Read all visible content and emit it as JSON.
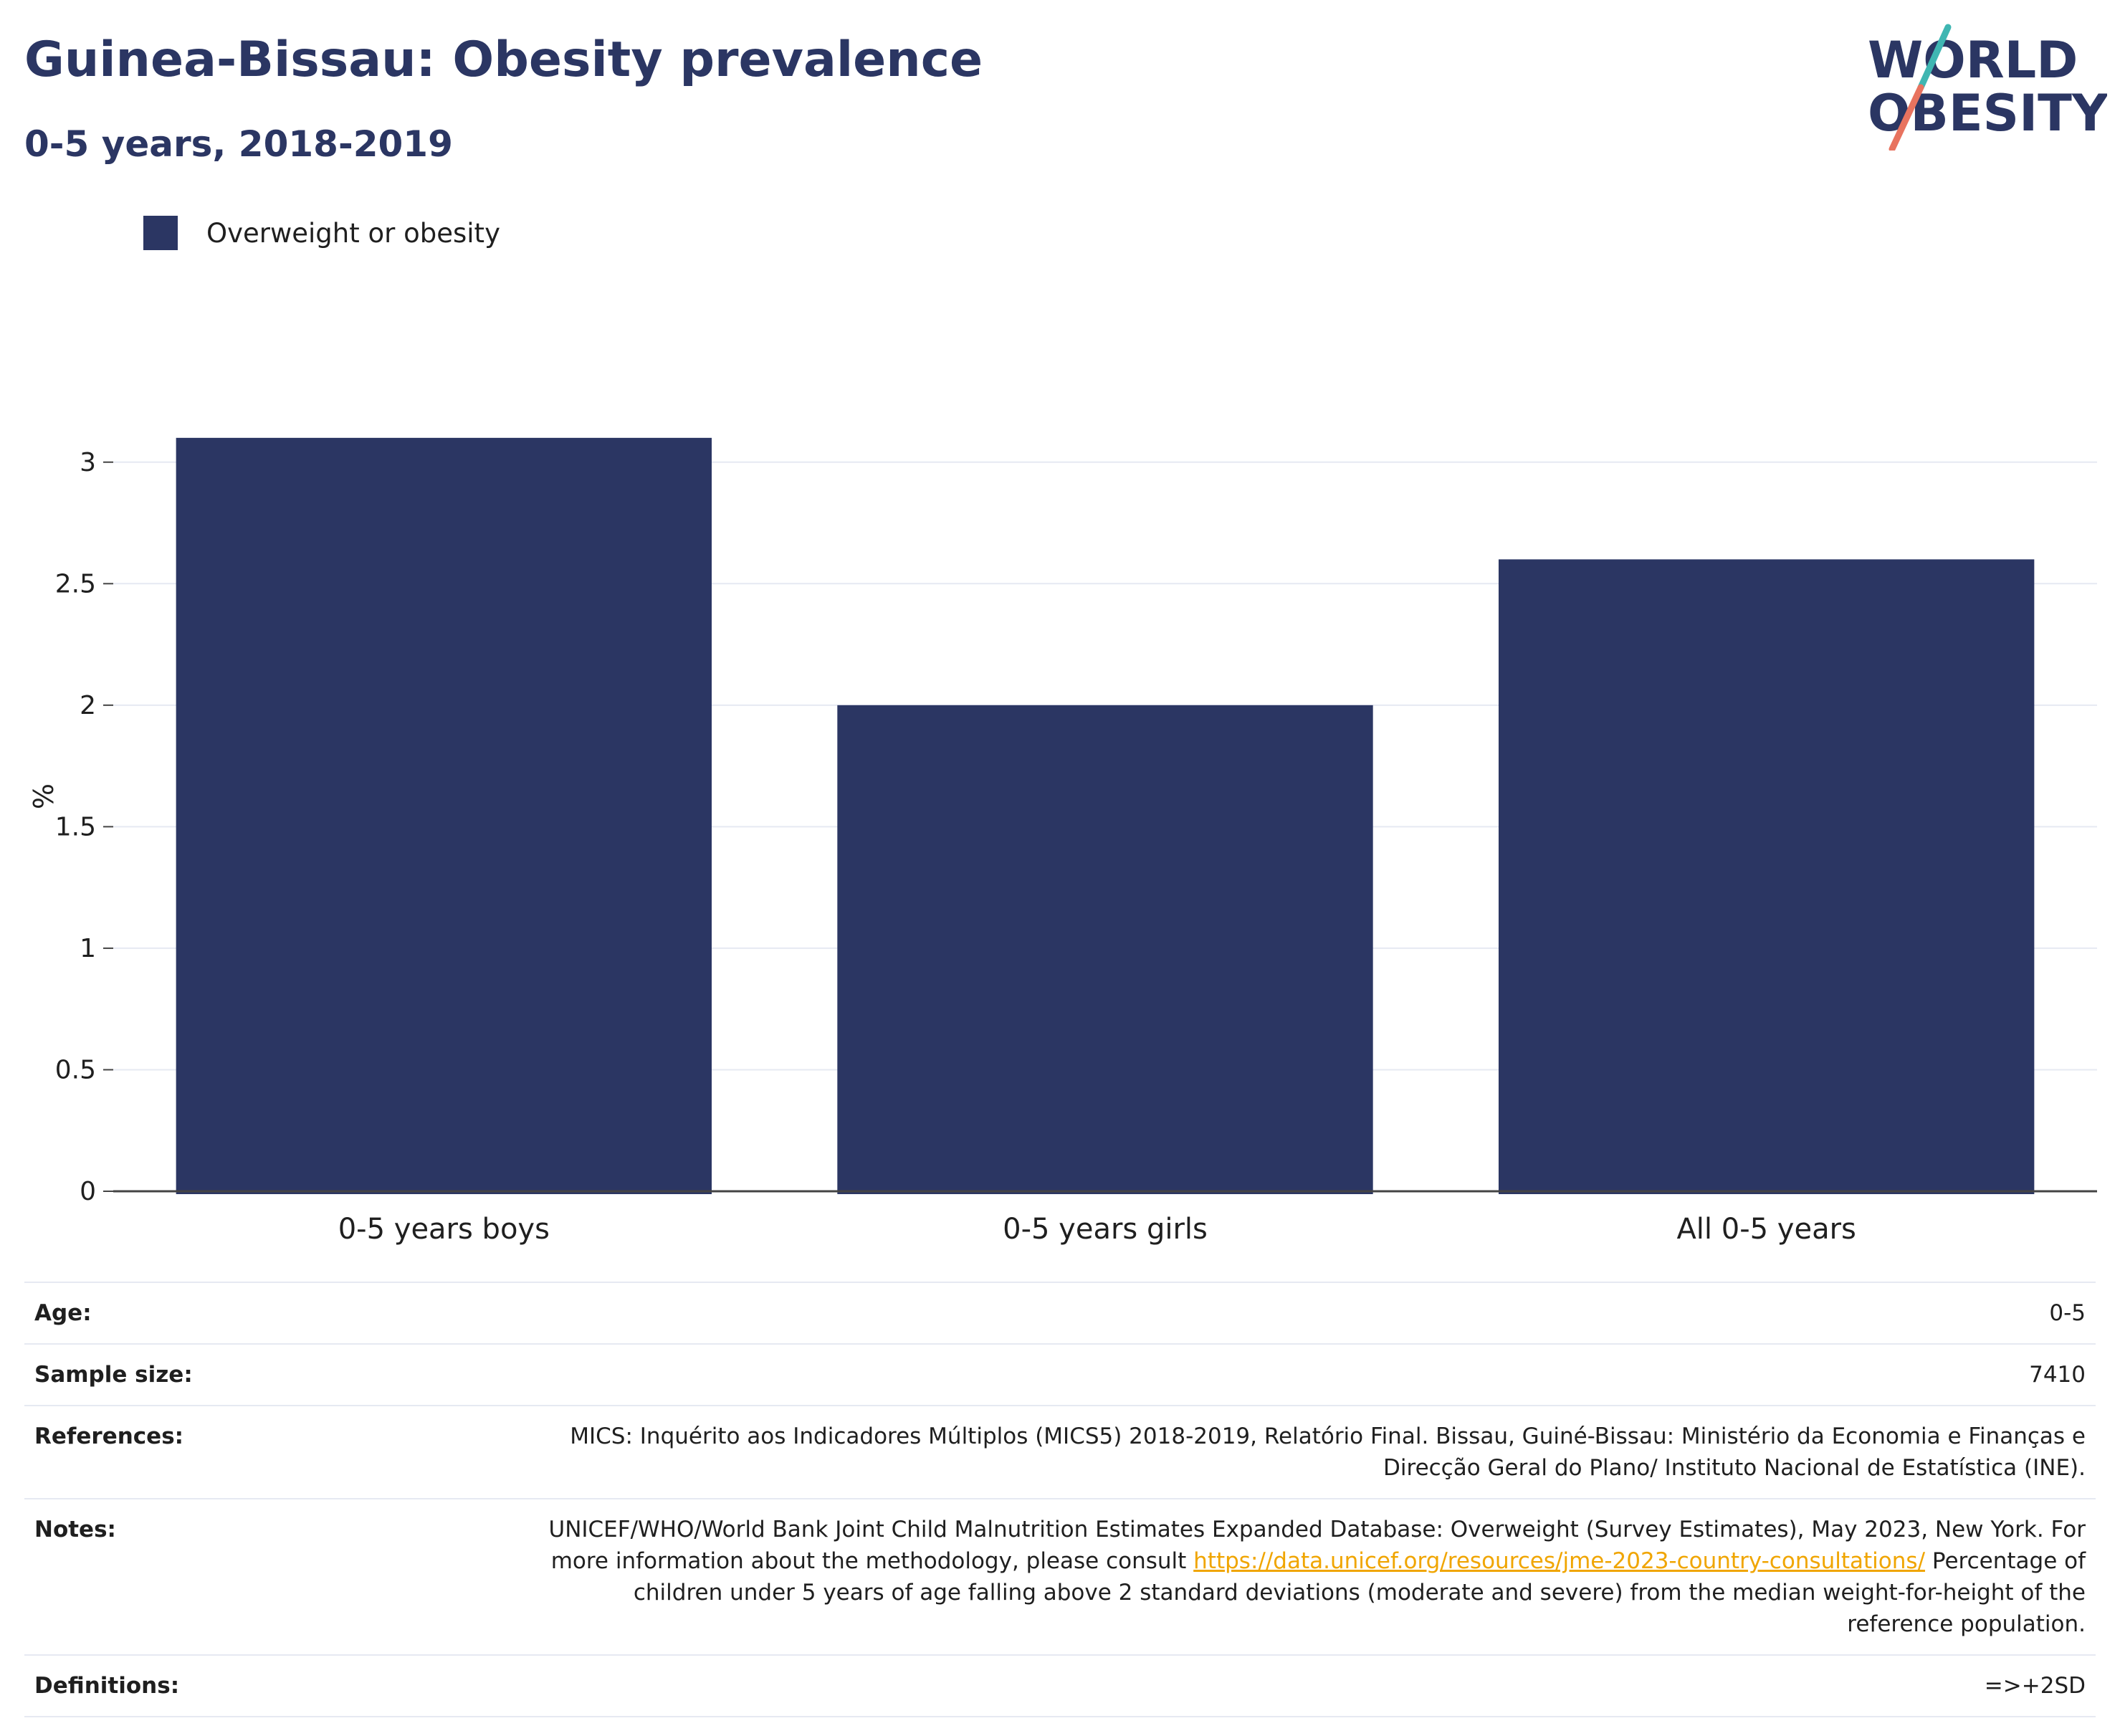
{
  "header": {
    "title": "Guinea-Bissau: Obesity prevalence",
    "subtitle": "0-5 years, 2018-2019"
  },
  "logo": {
    "line1": "WORLD",
    "line2": "OBESITY",
    "colors": {
      "text": "#2b3663",
      "accent_teal": "#3fb6b2",
      "accent_coral": "#e8735f"
    }
  },
  "legend": {
    "items": [
      {
        "label": "Overweight or obesity",
        "color": "#2b3663"
      }
    ]
  },
  "chart_data": {
    "type": "bar",
    "title": "Guinea-Bissau: Obesity prevalence",
    "subtitle": "0-5 years, 2018-2019",
    "categories": [
      "0-5 years boys",
      "0-5 years girls",
      "All 0-5 years"
    ],
    "series": [
      {
        "name": "Overweight or obesity",
        "values": [
          3.1,
          2.0,
          2.6
        ],
        "color": "#2b3663"
      }
    ],
    "xlabel": "",
    "ylabel": "%",
    "ylim": [
      0,
      3.25
    ],
    "yticks": [
      0,
      0.5,
      1,
      1.5,
      2,
      2.5,
      3
    ],
    "ytick_labels": [
      "0",
      "0.5",
      "1",
      "1.5",
      "2",
      "2.5",
      "3"
    ],
    "grid": true,
    "legend_position": "top-left"
  },
  "info": {
    "rows": [
      {
        "key": "Age:",
        "value": "0-5"
      },
      {
        "key": "Sample size:",
        "value": "7410"
      },
      {
        "key": "References:",
        "value": "MICS: Inquérito aos Indicadores Múltiplos (MICS5) 2018-2019, Relatório Final. Bissau, Guiné-Bissau: Ministério da Economia e Finanças e Direcção Geral do Plano/ Instituto Nacional de Estatística (INE)."
      },
      {
        "key": "Notes:",
        "value_pre": "UNICEF/WHO/World Bank Joint Child Malnutrition Estimates Expanded Database: Overweight (Survey Estimates), May 2023, New York. For more information about the methodology, please consult ",
        "link": "https://data.unicef.org/resources/jme-2023-country-consultations/",
        "value_post": " Percentage of children under 5 years of age falling above 2 standard deviations (moderate and severe) from the median weight-for-height of the reference population."
      },
      {
        "key": "Definitions:",
        "value": "=>+2SD"
      }
    ]
  }
}
